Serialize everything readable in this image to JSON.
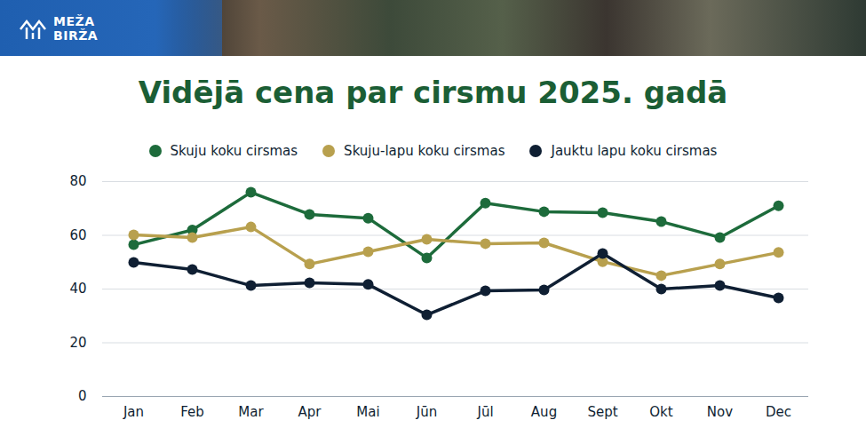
{
  "header": {
    "brand": [
      "MEŽA",
      "BIRŽA"
    ]
  },
  "chart_data": {
    "type": "line",
    "title": "Vidējā cena par cirsmu 2025. gadā",
    "categories": [
      "Jan",
      "Feb",
      "Mar",
      "Apr",
      "Mai",
      "Jūn",
      "Jūl",
      "Aug",
      "Sept",
      "Okt",
      "Nov",
      "Dec"
    ],
    "series": [
      {
        "name": "Skuju koku cirsmas",
        "color": "#1d6b3b",
        "values": [
          56.5,
          62,
          76,
          67.8,
          66.4,
          51.6,
          72,
          68.8,
          68.4,
          65.1,
          59.2,
          71
        ]
      },
      {
        "name": "Skuju-lapu koku cirsmas",
        "color": "#b8a04e",
        "values": [
          60.2,
          59.2,
          63.1,
          49.3,
          53.9,
          58.5,
          56.9,
          57.2,
          50.2,
          45,
          49.3,
          53.6
        ]
      },
      {
        "name": "Jauktu lapu koku cirsmas",
        "color": "#0f1f33",
        "values": [
          49.9,
          47.3,
          41.3,
          42.3,
          41.7,
          30.4,
          39.3,
          39.7,
          53.2,
          40,
          41.3,
          36.7
        ]
      }
    ],
    "ylim": [
      0,
      80
    ],
    "yticks": [
      0,
      20,
      40,
      60,
      80
    ],
    "grid": true,
    "legend": "top",
    "marker": "circle"
  }
}
